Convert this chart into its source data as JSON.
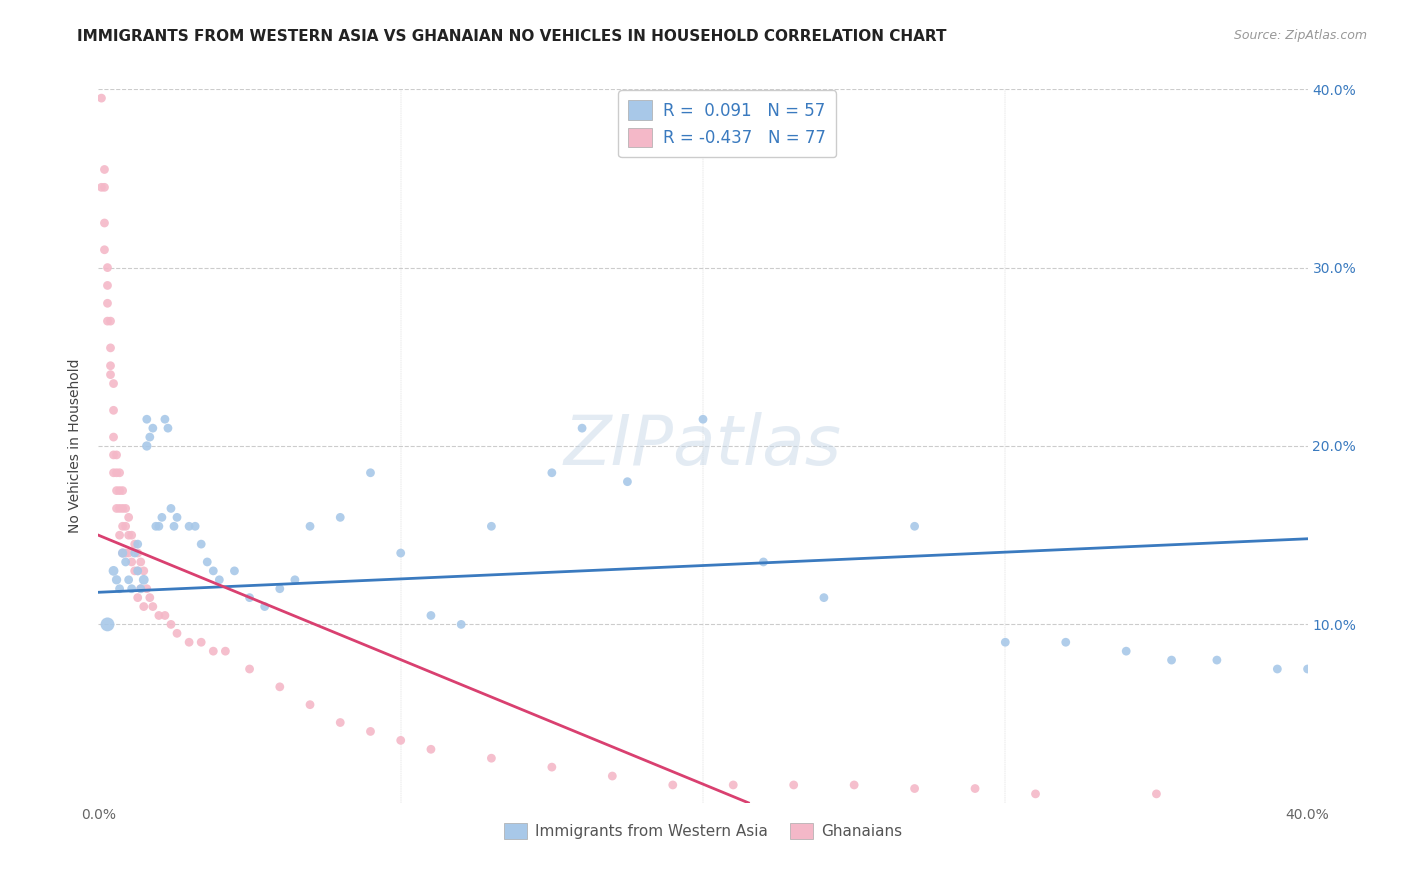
{
  "title": "IMMIGRANTS FROM WESTERN ASIA VS GHANAIAN NO VEHICLES IN HOUSEHOLD CORRELATION CHART",
  "source": "Source: ZipAtlas.com",
  "ylabel": "No Vehicles in Household",
  "legend_blue_r": "R =  0.091",
  "legend_blue_n": "N = 57",
  "legend_pink_r": "R = -0.437",
  "legend_pink_n": "N = 77",
  "legend_label_blue": "Immigrants from Western Asia",
  "legend_label_pink": "Ghanaians",
  "blue_color": "#a8c8e8",
  "pink_color": "#f4b8c8",
  "blue_line_color": "#3a7abf",
  "pink_line_color": "#d94070",
  "xlim": [
    0.0,
    0.4
  ],
  "ylim": [
    0.0,
    0.4
  ],
  "blue_scatter_x": [
    0.003,
    0.005,
    0.006,
    0.007,
    0.008,
    0.009,
    0.01,
    0.011,
    0.012,
    0.013,
    0.013,
    0.014,
    0.015,
    0.016,
    0.016,
    0.017,
    0.018,
    0.019,
    0.02,
    0.021,
    0.022,
    0.023,
    0.024,
    0.025,
    0.026,
    0.03,
    0.032,
    0.034,
    0.036,
    0.038,
    0.04,
    0.045,
    0.05,
    0.055,
    0.06,
    0.065,
    0.07,
    0.08,
    0.09,
    0.1,
    0.11,
    0.12,
    0.13,
    0.15,
    0.16,
    0.175,
    0.2,
    0.22,
    0.24,
    0.27,
    0.3,
    0.32,
    0.34,
    0.355,
    0.37,
    0.39,
    0.4
  ],
  "blue_scatter_y": [
    0.1,
    0.13,
    0.125,
    0.12,
    0.14,
    0.135,
    0.125,
    0.12,
    0.14,
    0.13,
    0.145,
    0.12,
    0.125,
    0.2,
    0.215,
    0.205,
    0.21,
    0.155,
    0.155,
    0.16,
    0.215,
    0.21,
    0.165,
    0.155,
    0.16,
    0.155,
    0.155,
    0.145,
    0.135,
    0.13,
    0.125,
    0.13,
    0.115,
    0.11,
    0.12,
    0.125,
    0.155,
    0.16,
    0.185,
    0.14,
    0.105,
    0.1,
    0.155,
    0.185,
    0.21,
    0.18,
    0.215,
    0.135,
    0.115,
    0.155,
    0.09,
    0.09,
    0.085,
    0.08,
    0.08,
    0.075,
    0.075
  ],
  "blue_scatter_size": [
    100,
    50,
    45,
    40,
    45,
    40,
    40,
    40,
    40,
    40,
    40,
    40,
    50,
    45,
    40,
    40,
    40,
    40,
    40,
    40,
    40,
    40,
    40,
    40,
    40,
    40,
    40,
    40,
    40,
    40,
    40,
    40,
    40,
    40,
    40,
    40,
    40,
    40,
    40,
    40,
    40,
    40,
    40,
    40,
    40,
    40,
    40,
    40,
    40,
    40,
    40,
    40,
    40,
    40,
    40,
    40,
    40
  ],
  "pink_scatter_x": [
    0.001,
    0.001,
    0.002,
    0.002,
    0.002,
    0.002,
    0.003,
    0.003,
    0.003,
    0.003,
    0.004,
    0.004,
    0.004,
    0.004,
    0.005,
    0.005,
    0.005,
    0.005,
    0.005,
    0.006,
    0.006,
    0.006,
    0.006,
    0.007,
    0.007,
    0.007,
    0.007,
    0.008,
    0.008,
    0.008,
    0.008,
    0.009,
    0.009,
    0.009,
    0.01,
    0.01,
    0.01,
    0.011,
    0.011,
    0.012,
    0.012,
    0.013,
    0.013,
    0.013,
    0.014,
    0.014,
    0.015,
    0.015,
    0.016,
    0.017,
    0.018,
    0.02,
    0.022,
    0.024,
    0.026,
    0.03,
    0.034,
    0.038,
    0.042,
    0.05,
    0.06,
    0.07,
    0.08,
    0.09,
    0.1,
    0.11,
    0.13,
    0.15,
    0.17,
    0.19,
    0.21,
    0.23,
    0.25,
    0.27,
    0.29,
    0.31,
    0.35
  ],
  "pink_scatter_y": [
    0.395,
    0.345,
    0.355,
    0.345,
    0.325,
    0.31,
    0.3,
    0.29,
    0.28,
    0.27,
    0.27,
    0.255,
    0.245,
    0.24,
    0.235,
    0.22,
    0.205,
    0.195,
    0.185,
    0.195,
    0.185,
    0.175,
    0.165,
    0.185,
    0.175,
    0.165,
    0.15,
    0.175,
    0.165,
    0.155,
    0.14,
    0.165,
    0.155,
    0.14,
    0.16,
    0.15,
    0.14,
    0.15,
    0.135,
    0.145,
    0.13,
    0.14,
    0.13,
    0.115,
    0.135,
    0.12,
    0.13,
    0.11,
    0.12,
    0.115,
    0.11,
    0.105,
    0.105,
    0.1,
    0.095,
    0.09,
    0.09,
    0.085,
    0.085,
    0.075,
    0.065,
    0.055,
    0.045,
    0.04,
    0.035,
    0.03,
    0.025,
    0.02,
    0.015,
    0.01,
    0.01,
    0.01,
    0.01,
    0.008,
    0.008,
    0.005,
    0.005
  ],
  "pink_scatter_size": [
    40,
    40,
    40,
    40,
    40,
    40,
    40,
    40,
    40,
    40,
    40,
    40,
    40,
    40,
    40,
    40,
    40,
    40,
    40,
    40,
    40,
    40,
    40,
    40,
    40,
    40,
    40,
    40,
    40,
    40,
    40,
    40,
    40,
    40,
    40,
    40,
    40,
    40,
    40,
    40,
    40,
    40,
    40,
    40,
    40,
    40,
    40,
    40,
    40,
    40,
    40,
    40,
    40,
    40,
    40,
    40,
    40,
    40,
    40,
    40,
    40,
    40,
    40,
    40,
    40,
    40,
    40,
    40,
    40,
    40,
    40,
    40,
    40,
    40,
    40,
    40,
    40
  ],
  "blue_line_x": [
    0.0,
    0.4
  ],
  "blue_line_y": [
    0.118,
    0.148
  ],
  "pink_line_x": [
    0.0,
    0.215
  ],
  "pink_line_y": [
    0.15,
    0.0
  ],
  "grid_color": "#cccccc",
  "ytick_vals": [
    0.0,
    0.1,
    0.2,
    0.3,
    0.4
  ],
  "ytick_labels_right": [
    "",
    "10.0%",
    "20.0%",
    "30.0%",
    "40.0%"
  ],
  "xtick_vals": [
    0.0,
    0.1,
    0.2,
    0.3,
    0.4
  ],
  "right_tick_color": "#3a7abf",
  "title_fontsize": 11,
  "source_fontsize": 9,
  "axis_label_fontsize": 10,
  "tick_fontsize": 10
}
